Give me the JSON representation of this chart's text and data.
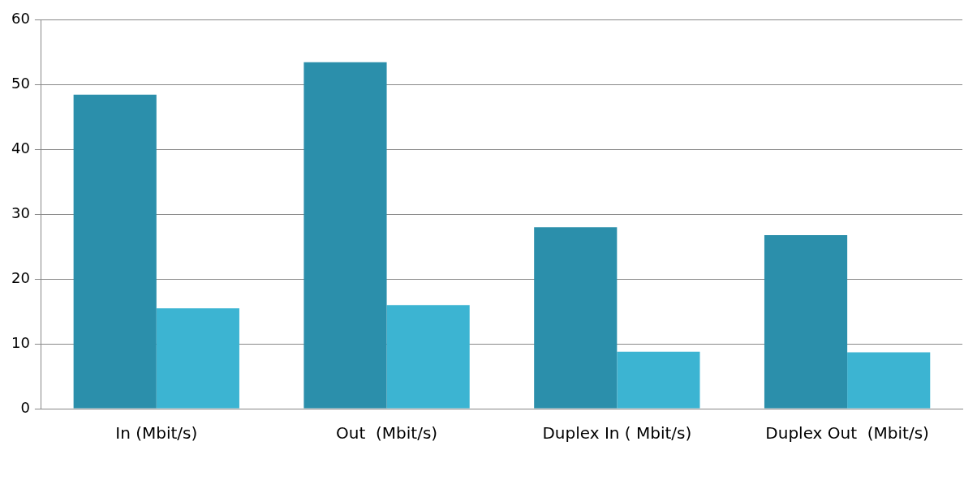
{
  "chart_data": {
    "type": "bar",
    "categories": [
      "In (Mbit/s)",
      "Out  (Mbit/s)",
      "Duplex In ( Mbit/s)",
      "Duplex Out  (Mbit/s)"
    ],
    "series": [
      {
        "color": "#2b8fab",
        "values": [
          48.5,
          53.5,
          28,
          26.8
        ]
      },
      {
        "color": "#3cb4d2",
        "values": [
          15.5,
          16,
          8.8,
          8.7
        ]
      }
    ],
    "ylim": [
      0,
      60
    ],
    "yticks": [
      0,
      10,
      20,
      30,
      40,
      50,
      60
    ],
    "grid": "y",
    "legend": false
  }
}
